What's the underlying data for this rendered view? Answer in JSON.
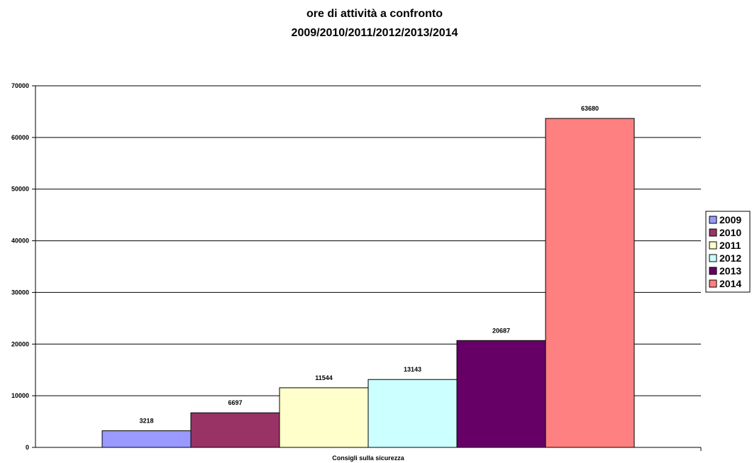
{
  "chart_data": {
    "type": "bar",
    "title": "ore di attività a confronto",
    "subtitle": "2009/2010/2011/2012/2013/2014",
    "categories": [
      "Consigli sulla sicurezza"
    ],
    "series": [
      {
        "name": "2009",
        "values": [
          3218
        ],
        "color": "#9999FF"
      },
      {
        "name": "2010",
        "values": [
          6697
        ],
        "color": "#993366"
      },
      {
        "name": "2011",
        "values": [
          11544
        ],
        "color": "#FFFFCC"
      },
      {
        "name": "2012",
        "values": [
          13143
        ],
        "color": "#CCFFFF"
      },
      {
        "name": "2013",
        "values": [
          20687
        ],
        "color": "#660066"
      },
      {
        "name": "2014",
        "values": [
          63680
        ],
        "color": "#FF8080"
      }
    ],
    "ylim": [
      0,
      70000
    ],
    "yticks": [
      0,
      10000,
      20000,
      30000,
      40000,
      50000,
      60000,
      70000
    ],
    "grid": true,
    "legend": "right",
    "xlabel": "",
    "ylabel": ""
  }
}
